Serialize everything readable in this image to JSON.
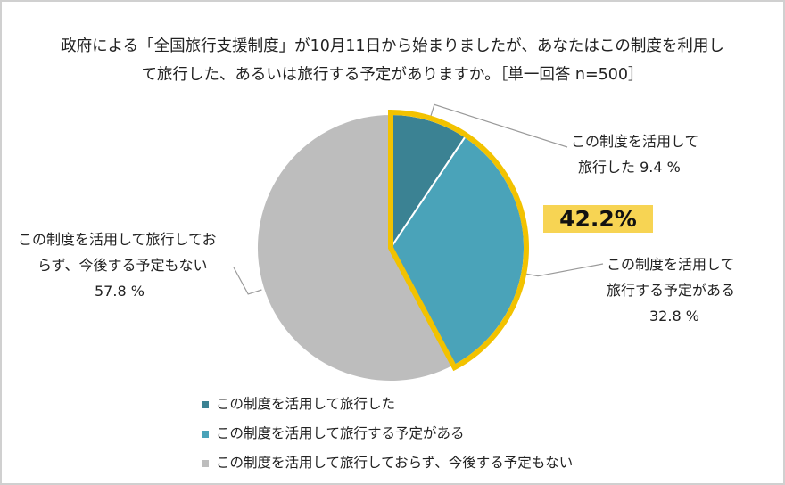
{
  "title": {
    "line1": "政府による「全国旅行支援制度」が10月11日から始まりましたが、あなたはこの制度を利用し",
    "line2": "て旅行した、あるいは旅行する予定がありますか。［単一回答 n=500］"
  },
  "highlight": {
    "label": "42.2%",
    "value": 42.2,
    "color": "#f2c200"
  },
  "chart_data": {
    "type": "pie",
    "start_angle_deg": 0,
    "direction": "clockwise",
    "slices": [
      {
        "name": "この制度を活用して旅行した",
        "value": 9.4,
        "color": "#3b8293"
      },
      {
        "name": "この制度を活用して旅行する予定がある",
        "value": 32.8,
        "color": "#4aa3b9"
      },
      {
        "name": "この制度を活用して旅行しておらず、今後する予定もない",
        "value": 57.8,
        "color": "#bdbdbd"
      }
    ],
    "data_labels": [
      {
        "line1": "この制度を活用して",
        "line2": "旅行した 9.4 %"
      },
      {
        "line1": "この制度を活用して",
        "line2": "旅行する予定がある",
        "line3": "32.8 %"
      },
      {
        "line1": "この制度を活用して旅行してお",
        "line2": "らず、今後する予定もない",
        "line3": "57.8 %"
      }
    ],
    "legend_position": "bottom"
  }
}
